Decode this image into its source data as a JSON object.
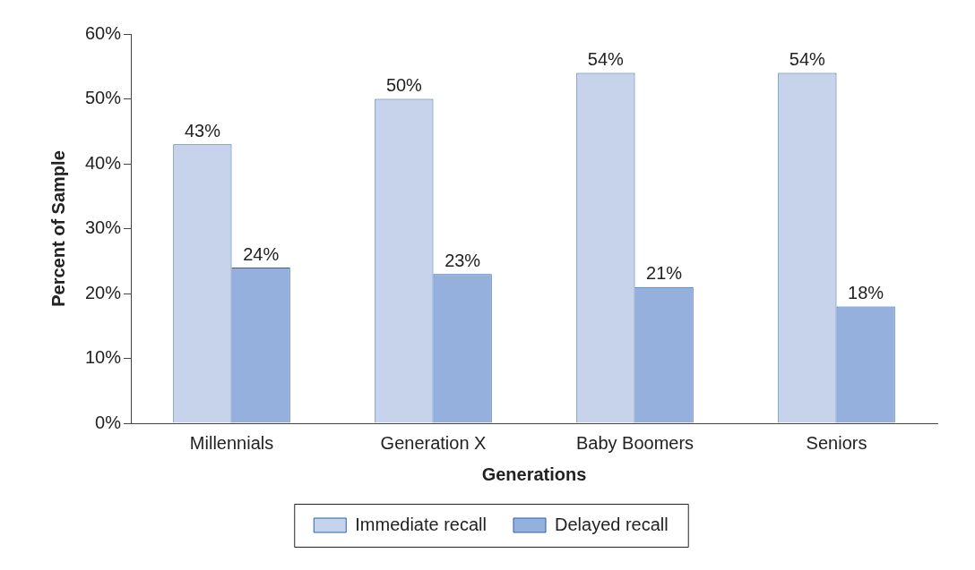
{
  "chart_data": {
    "type": "bar",
    "xlabel": "Generations",
    "ylabel": "Percent of Sample",
    "categories": [
      "Millennials",
      "Generation X",
      "Baby Boomers",
      "Seniors"
    ],
    "series": [
      {
        "name": "Immediate recall",
        "color": "#c6d3ea",
        "values": [
          43,
          50,
          54,
          54
        ],
        "value_labels": [
          "43%",
          "50%",
          "54%",
          "54%"
        ]
      },
      {
        "name": "Delayed recall",
        "color": "#95b0dc",
        "values": [
          24,
          23,
          21,
          18
        ],
        "value_labels": [
          "24%",
          "23%",
          "21%",
          "18%"
        ]
      }
    ],
    "ylim": [
      0,
      60
    ],
    "yticks": [
      {
        "value": 0,
        "label": "0%"
      },
      {
        "value": 10,
        "label": "10%"
      },
      {
        "value": 20,
        "label": "20%"
      },
      {
        "value": 30,
        "label": "30%"
      },
      {
        "value": 40,
        "label": "40%"
      },
      {
        "value": 50,
        "label": "50%"
      },
      {
        "value": 60,
        "label": "60%"
      }
    ],
    "grid": false,
    "legend": "bottom"
  }
}
